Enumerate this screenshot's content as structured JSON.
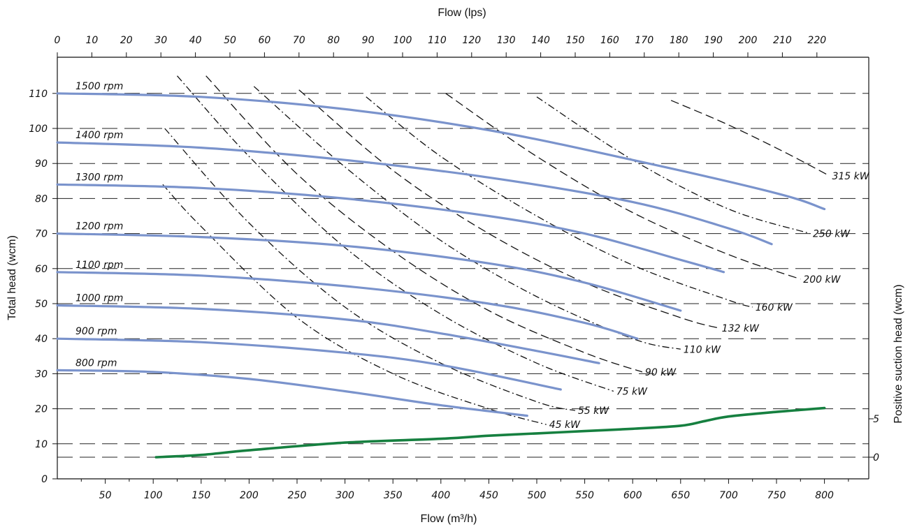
{
  "chart_data": {
    "type": "line",
    "xlabel": "Flow (m³/h)",
    "x2label": "Flow (lps)",
    "ylabel": "Total head (wcm)",
    "y2label": "Positive suction head (wcm)",
    "xlim": [
      0,
      830
    ],
    "ylim": [
      0,
      120
    ],
    "x_ticks": [
      "50",
      "100",
      "150",
      "200",
      "250",
      "300",
      "350",
      "400",
      "450",
      "500",
      "550",
      "600",
      "650",
      "700",
      "750",
      "800"
    ],
    "x2_ticks": [
      "0",
      "10",
      "20",
      "30",
      "40",
      "50",
      "60",
      "70",
      "80",
      "90",
      "100",
      "110",
      "120",
      "130",
      "140",
      "150",
      "160",
      "170",
      "180",
      "190",
      "200",
      "210",
      "220"
    ],
    "y_ticks": [
      "0",
      "10",
      "20",
      "30",
      "40",
      "50",
      "60",
      "70",
      "80",
      "90",
      "100",
      "110"
    ],
    "y2_ticks": [
      "0",
      "5"
    ],
    "grid": "horizontal dashed",
    "colors": {
      "speed_curve": "#7a93cc",
      "npsh_curve": "#168040",
      "power_curve": "#111111"
    },
    "speed_curves": [
      {
        "name": "1500 rpm",
        "x": [
          0,
          150,
          300,
          450,
          600,
          750,
          800
        ],
        "y": [
          110,
          109,
          105.5,
          99.5,
          91,
          81.5,
          77
        ]
      },
      {
        "name": "1400 rpm",
        "x": [
          0,
          150,
          300,
          450,
          600,
          700,
          745
        ],
        "y": [
          96,
          94.5,
          91,
          86,
          79,
          71.5,
          67
        ]
      },
      {
        "name": "1300 rpm",
        "x": [
          0,
          150,
          300,
          450,
          550,
          650,
          695
        ],
        "y": [
          84,
          83,
          80,
          75,
          70,
          62.5,
          59
        ]
      },
      {
        "name": "1200 rpm",
        "x": [
          0,
          150,
          300,
          450,
          550,
          650
        ],
        "y": [
          70,
          69,
          66.5,
          61.5,
          56,
          48
        ]
      },
      {
        "name": "1100 rpm",
        "x": [
          0,
          150,
          300,
          450,
          550,
          605
        ],
        "y": [
          59,
          58,
          55,
          50,
          44.5,
          40
        ]
      },
      {
        "name": "1000 rpm",
        "x": [
          0,
          150,
          300,
          400,
          500,
          565
        ],
        "y": [
          49.5,
          48.5,
          45.5,
          41.5,
          36.5,
          33
        ]
      },
      {
        "name": "900 rpm",
        "x": [
          0,
          150,
          300,
          400,
          525
        ],
        "y": [
          40,
          39,
          36,
          32.5,
          25.5
        ]
      },
      {
        "name": "800 rpm",
        "x": [
          0,
          100,
          200,
          300,
          400,
          490
        ],
        "y": [
          31,
          30.5,
          28.5,
          25,
          21,
          18
        ]
      }
    ],
    "power_curves": [
      {
        "name": "45 kW",
        "x": [
          110,
          150,
          250,
          350,
          450,
          510
        ],
        "y": [
          84,
          72,
          46,
          30,
          20,
          15.5
        ],
        "dash": "10 4 2 4"
      },
      {
        "name": "55 kW",
        "x": [
          112,
          200,
          300,
          400,
          500,
          540
        ],
        "y": [
          100,
          73,
          49,
          33,
          22,
          19.5
        ],
        "dash": "10 4 2 4"
      },
      {
        "name": "75 kW",
        "x": [
          125,
          200,
          300,
          400,
          500,
          580
        ],
        "y": [
          115,
          92,
          66,
          47,
          33,
          25
        ],
        "dash": "10 4 2 4"
      },
      {
        "name": "90 kW",
        "x": [
          155,
          250,
          350,
          450,
          550,
          610
        ],
        "y": [
          115,
          87,
          65,
          48,
          36,
          30.5
        ],
        "dash": "12 6"
      },
      {
        "name": "110 kW",
        "x": [
          205,
          300,
          400,
          500,
          600,
          650
        ],
        "y": [
          112,
          89,
          68,
          52,
          40,
          37
        ],
        "dash": "10 4 2 4"
      },
      {
        "name": "132 kW",
        "x": [
          252,
          350,
          450,
          550,
          650,
          690
        ],
        "y": [
          111,
          88,
          70,
          56,
          46,
          43
        ],
        "dash": "12 6"
      },
      {
        "name": "160 kW",
        "x": [
          322,
          400,
          500,
          600,
          700,
          725
        ],
        "y": [
          109,
          92,
          75,
          61,
          51,
          49
        ],
        "dash": "10 4 2 4"
      },
      {
        "name": "200 kW",
        "x": [
          405,
          500,
          600,
          700,
          775
        ],
        "y": [
          110,
          92,
          76,
          64,
          57
        ],
        "dash": "12 6"
      },
      {
        "name": "250 kW",
        "x": [
          500,
          600,
          700,
          785
        ],
        "y": [
          109,
          91,
          77,
          70
        ],
        "dash": "10 4 2 4"
      },
      {
        "name": "315 kW",
        "x": [
          640,
          700,
          760,
          805
        ],
        "y": [
          108,
          101,
          93,
          86.5
        ],
        "dash": "12 6"
      }
    ],
    "npsh_curve": {
      "name": "Positive suction head",
      "x": [
        103,
        150,
        200,
        300,
        400,
        450,
        500,
        550,
        600,
        650,
        675,
        700,
        750,
        800
      ],
      "y": [
        0,
        0.3,
        0.9,
        1.9,
        2.4,
        2.8,
        3.1,
        3.4,
        3.7,
        4.1,
        4.7,
        5.3,
        5.9,
        6.4
      ]
    }
  }
}
